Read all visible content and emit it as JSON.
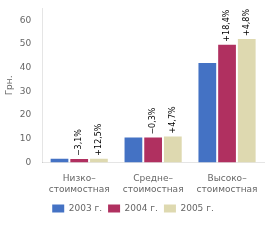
{
  "chart_data": {
    "type": "bar",
    "categories": [
      "Низко–\nстоимостная",
      "Средне–\nстоимостная",
      "Высоко–\nстоимостная"
    ],
    "series": [
      {
        "name": "2003 г.",
        "color": "#4472c4",
        "values": [
          1.5,
          10.5,
          42.0
        ]
      },
      {
        "name": "2004 г.",
        "color": "#b03060",
        "values": [
          1.4,
          10.47,
          49.7
        ],
        "annotations": [
          "−3,1%",
          "−0,3%",
          "+18,4%"
        ]
      },
      {
        "name": "2005 г.",
        "color": "#ded9b0",
        "values": [
          1.58,
          10.96,
          52.1
        ],
        "annotations": [
          "+12,5%",
          "+4,7%",
          "+4,8%"
        ]
      }
    ],
    "ylabel": "Грн.",
    "ylim": [
      0,
      65
    ],
    "yticks": [
      0,
      10,
      20,
      30,
      40,
      50,
      60
    ],
    "grid": false,
    "legend": "bottom"
  }
}
